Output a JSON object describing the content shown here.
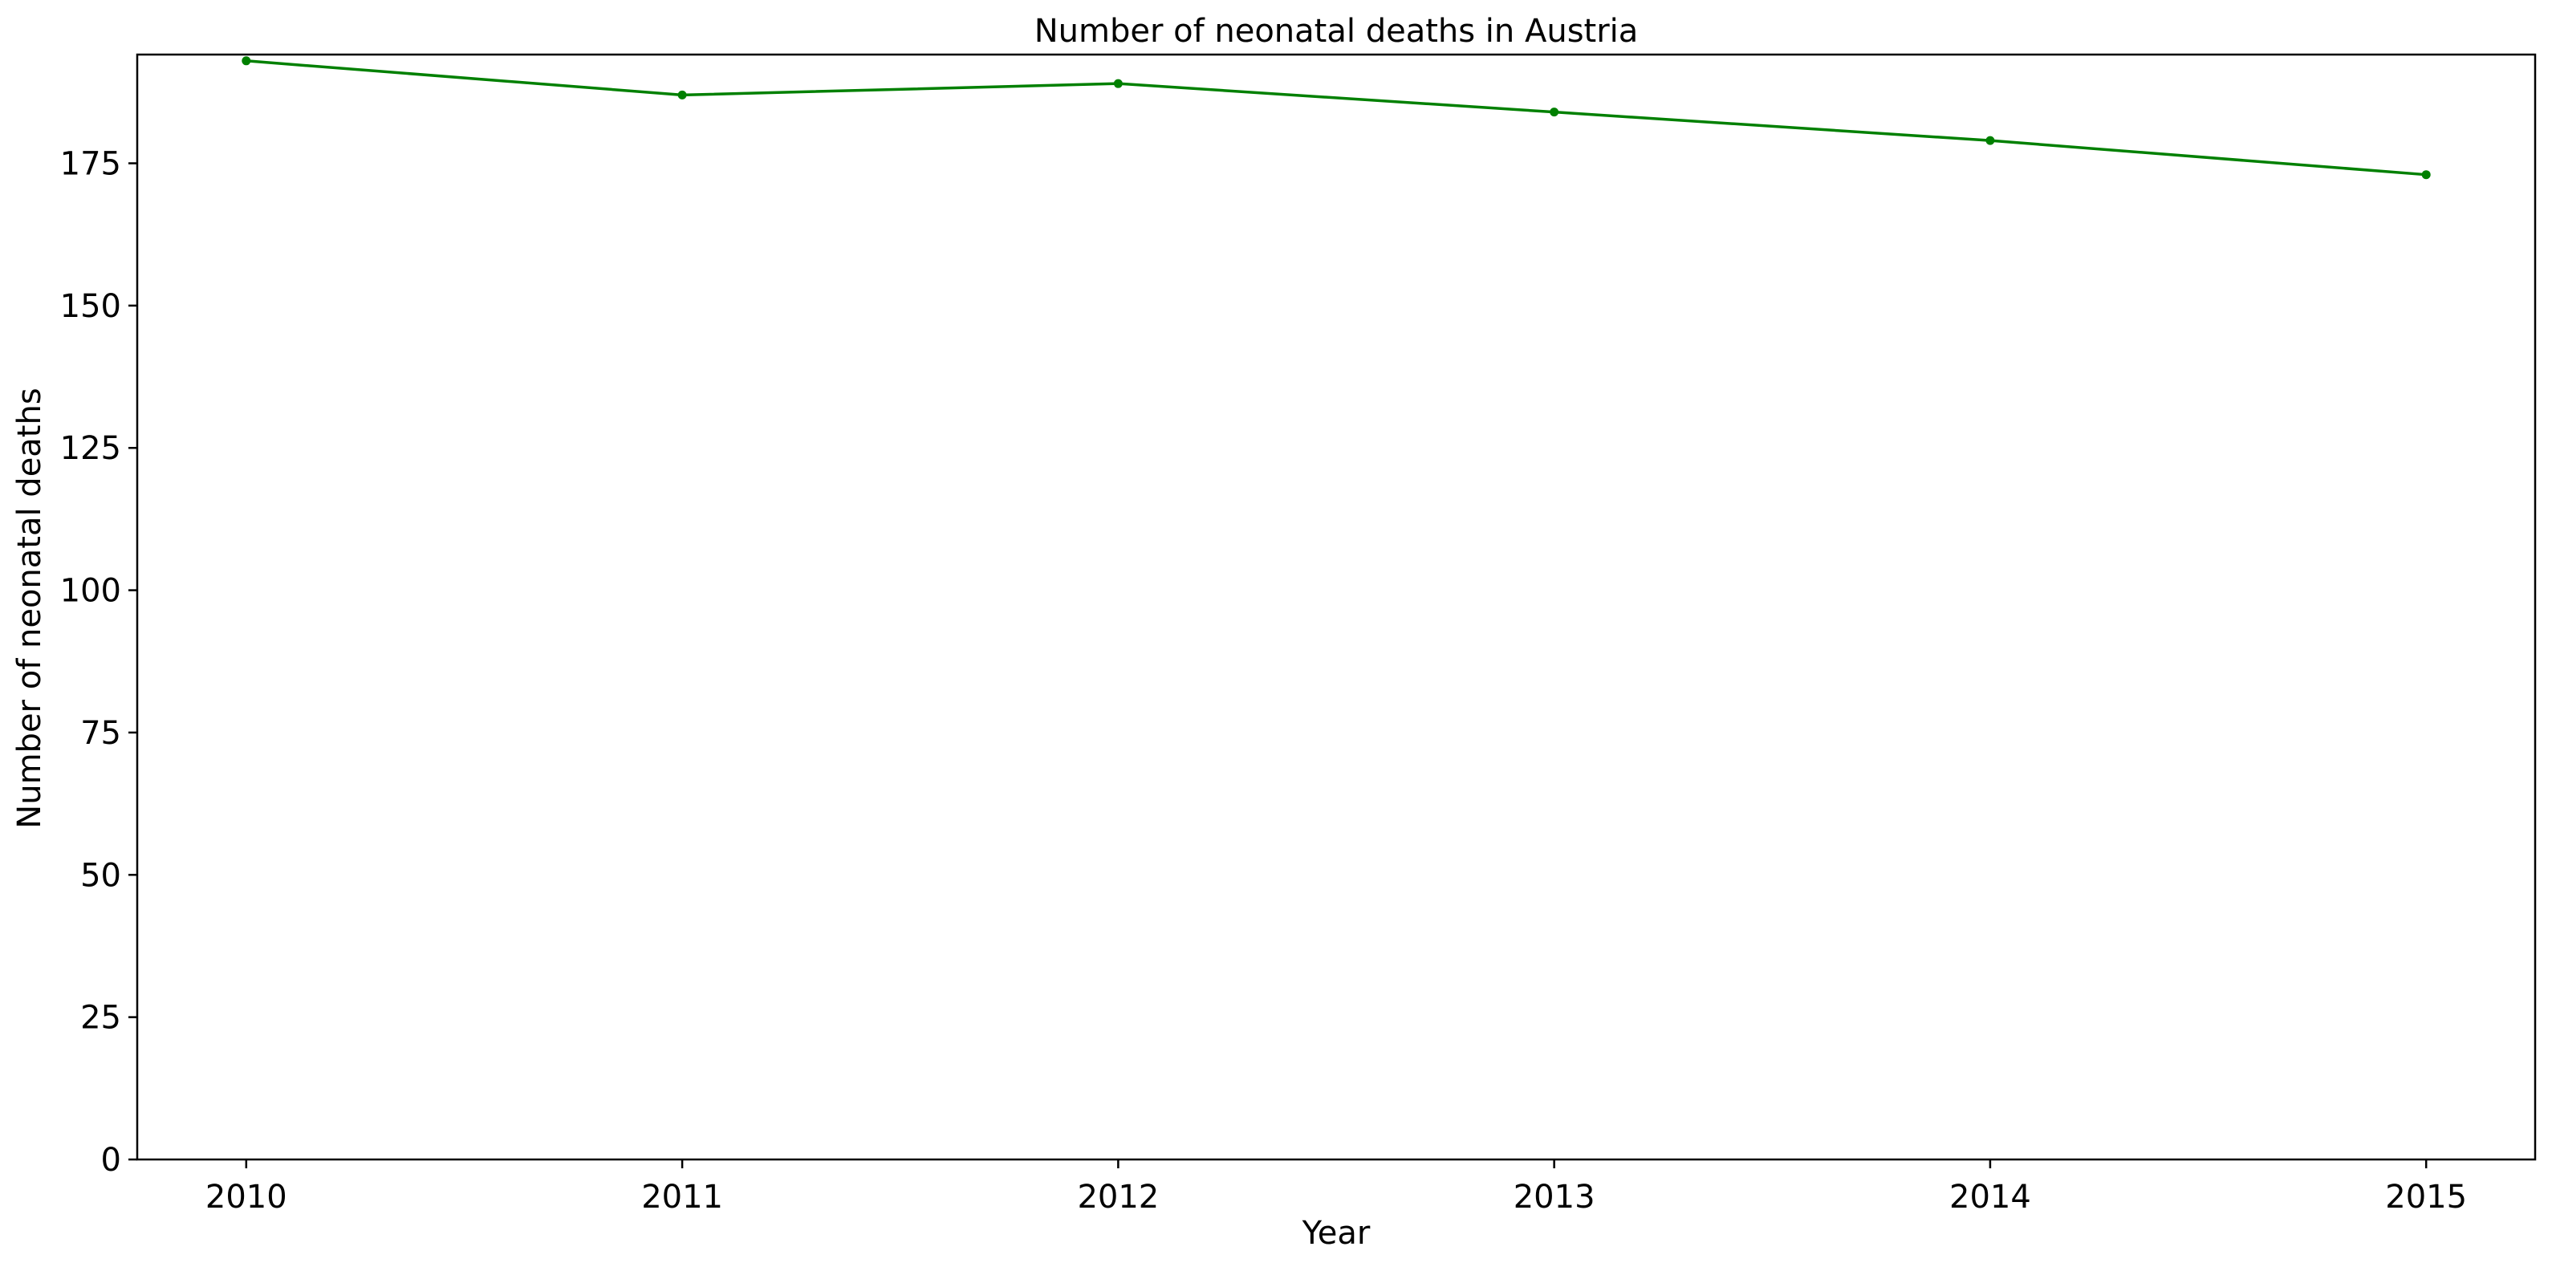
{
  "chart_data": {
    "type": "line",
    "title": "Number of neonatal deaths in Austria",
    "xlabel": "Year",
    "ylabel": "Number of neonatal deaths",
    "x": [
      2010,
      2011,
      2012,
      2013,
      2014,
      2015
    ],
    "x_tick_labels": [
      "2010",
      "2011",
      "2012",
      "2013",
      "2014",
      "2015"
    ],
    "y_ticks": [
      0,
      25,
      50,
      75,
      100,
      125,
      150,
      175
    ],
    "y_tick_labels": [
      "0",
      "25",
      "50",
      "75",
      "100",
      "125",
      "150",
      "175"
    ],
    "xlim": [
      2009.75,
      2015.25
    ],
    "ylim": [
      0,
      194.1
    ],
    "grid": false,
    "series": [
      {
        "values": [
          193,
          187,
          189,
          184,
          179,
          173
        ],
        "color": "#008000",
        "marker": "circle"
      }
    ]
  }
}
